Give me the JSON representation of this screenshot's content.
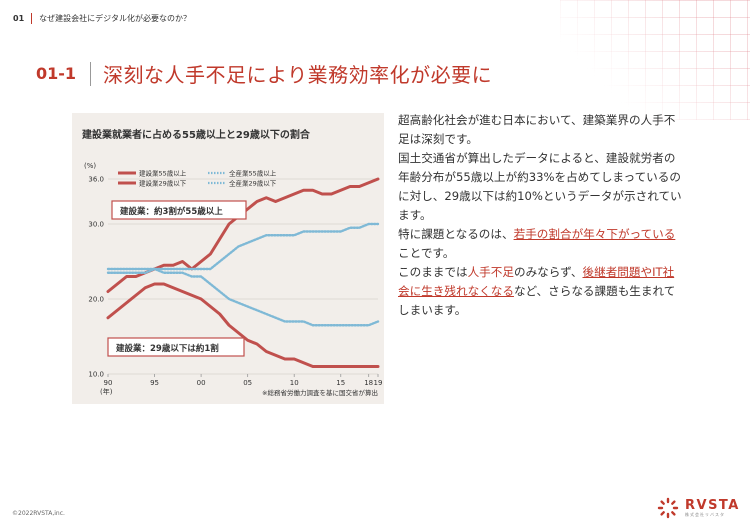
{
  "header": {
    "section_num": "01",
    "section_title": "なぜ建設会社にデジタル化が必要なのか？"
  },
  "title": {
    "num": "01-1",
    "text": "深刻な人手不足により業務効率化が必要に"
  },
  "body": {
    "p1": "超高齢化社会が進む日本において、建築業界の人手不足は深刻です。",
    "p2": "国土交通省が算出したデータによると、建設就労者の年齢分布が55歳以上が約33%を占めてしまっているのに対し、29歳以下は約10%というデータが示されています。",
    "p3_a": "特に課題となるのは、",
    "p3_b": "若手の割合が年々下がっている",
    "p3_c": "ことです。",
    "p4_a": "このままでは",
    "p4_b": "人手不足",
    "p4_c": "のみならず、",
    "p4_d": "後継者問題やIT社会に生き残れなくなる",
    "p4_e": "など、さらなる課題も生まれてしまいます。"
  },
  "footer": {
    "copyright": "©2022RVSTA,inc."
  },
  "logo": {
    "name": "RVSTA",
    "sub": "株式会社リバスタ"
  },
  "colors": {
    "accent": "#c0392b",
    "chart_bg": "#f2eeea",
    "dotted_series": "#7fb9d6"
  },
  "chart_data": {
    "type": "line",
    "title": "建設業就業者に占める55歳以上と29歳以下の割合",
    "ylabel": "(%)",
    "xlabel": "(年)",
    "ylim": [
      10,
      36
    ],
    "yticks": [
      {
        "value": 36,
        "label": "36.0"
      },
      {
        "value": 30,
        "label": "30.0"
      },
      {
        "value": 20,
        "label": "20.0"
      },
      {
        "value": 10,
        "label": "10.0"
      }
    ],
    "x_start": 1990,
    "x_end": 2019,
    "xticks": [
      {
        "value": 1990,
        "label": "90"
      },
      {
        "value": 1995,
        "label": "95"
      },
      {
        "value": 2000,
        "label": "00"
      },
      {
        "value": 2005,
        "label": "05"
      },
      {
        "value": 2010,
        "label": "10"
      },
      {
        "value": 2015,
        "label": "15"
      },
      {
        "value": 2018,
        "label": "18"
      },
      {
        "value": 2019,
        "label": "19"
      }
    ],
    "series": [
      {
        "name": "建設業55歳以上",
        "style": "solid",
        "color": "#c0504d",
        "values": [
          21,
          22,
          23,
          23,
          23.5,
          24,
          24.5,
          24.5,
          25,
          24,
          25,
          26,
          28,
          30,
          31,
          32,
          33,
          33.5,
          33,
          33.5,
          34,
          34.5,
          34.5,
          34,
          34,
          34.5,
          35,
          35,
          35.5,
          36
        ]
      },
      {
        "name": "全産業55歳以上",
        "style": "dotted",
        "color": "#7fb9d6",
        "values": [
          23.5,
          23.5,
          23.5,
          23.5,
          23.5,
          24,
          24,
          24,
          24,
          24,
          24,
          24,
          25,
          26,
          27,
          27.5,
          28,
          28.5,
          28.5,
          28.5,
          28.5,
          29,
          29,
          29,
          29,
          29,
          29.5,
          29.5,
          30,
          30
        ]
      },
      {
        "name": "建設業29歳以下",
        "style": "solid",
        "color": "#c0504d",
        "values": [
          17.5,
          18.5,
          19.5,
          20.5,
          21.5,
          22,
          22,
          21.5,
          21,
          20.5,
          20,
          19,
          18,
          16.5,
          15.5,
          14.5,
          14,
          13,
          12.5,
          12,
          12,
          11.5,
          11,
          11,
          11,
          11,
          11,
          11,
          11,
          11
        ]
      },
      {
        "name": "全産業29歳以下",
        "style": "dotted",
        "color": "#7fb9d6",
        "values": [
          24,
          24,
          24,
          24,
          24,
          24,
          23.5,
          23.5,
          23.5,
          23,
          23,
          22,
          21,
          20,
          19.5,
          19,
          18.5,
          18,
          17.5,
          17,
          17,
          17,
          16.5,
          16.5,
          16.5,
          16.5,
          16.5,
          16.5,
          16.5,
          17
        ]
      }
    ],
    "annotations": [
      "建設業：約3割が55歳以上",
      "建設業：29歳以下は約1割"
    ],
    "source": "※総務省労働力調査を基に国交省が算出"
  }
}
